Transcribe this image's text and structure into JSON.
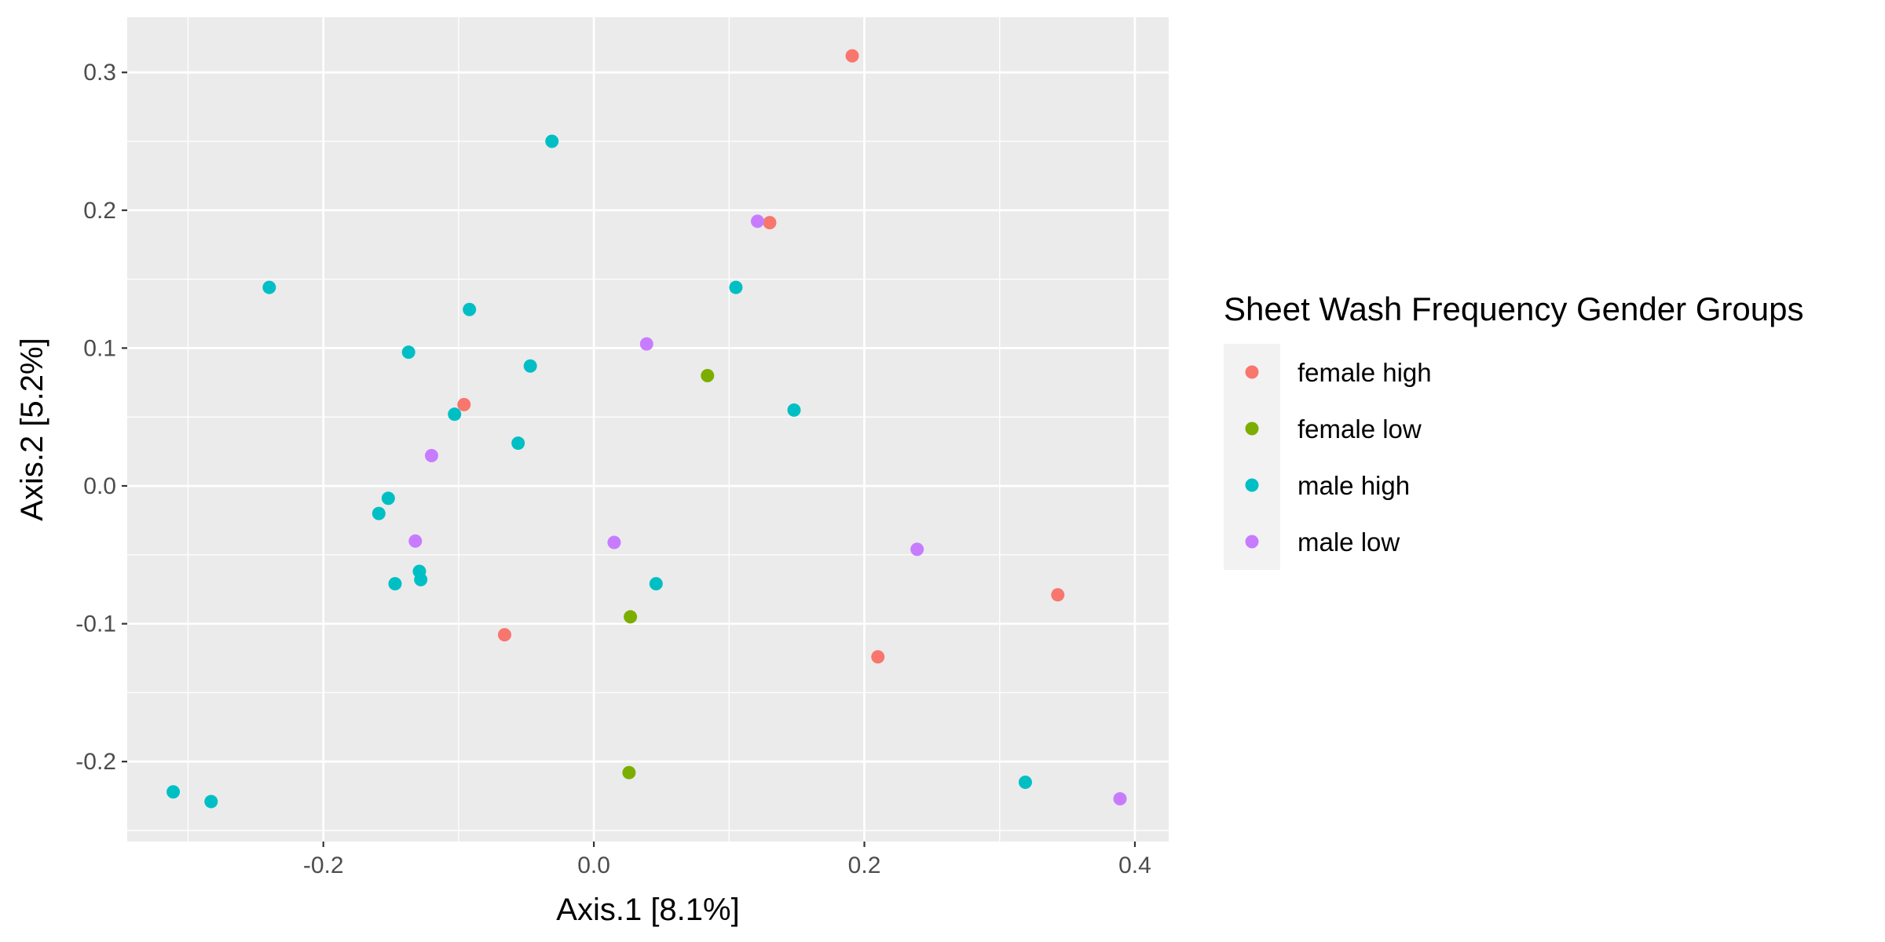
{
  "chart_data": {
    "type": "scatter",
    "xlabel": "Axis.1   [8.1%]",
    "ylabel": "Axis.2   [5.2%]",
    "xlim": [
      -0.345,
      0.425
    ],
    "ylim": [
      -0.258,
      0.34
    ],
    "x_ticks": [
      -0.2,
      0.0,
      0.2,
      0.4
    ],
    "x_tick_labels": [
      "-0.2",
      "0.0",
      "0.2",
      "0.4"
    ],
    "y_ticks": [
      -0.2,
      -0.1,
      0.0,
      0.1,
      0.2,
      0.3
    ],
    "y_tick_labels": [
      "-0.2",
      "-0.1",
      "0.0",
      "0.1",
      "0.2",
      "0.3"
    ],
    "grid": true,
    "legend": {
      "title": "Sheet Wash Frequency Gender Groups",
      "placement": "right"
    },
    "series": [
      {
        "name": "female high",
        "color": "#F8766D",
        "points": [
          [
            0.191,
            0.312
          ],
          [
            0.13,
            0.191
          ],
          [
            -0.096,
            0.059
          ],
          [
            -0.066,
            -0.108
          ],
          [
            0.21,
            -0.124
          ],
          [
            0.343,
            -0.079
          ]
        ]
      },
      {
        "name": "female low",
        "color": "#7CAE00",
        "points": [
          [
            0.084,
            0.08
          ],
          [
            0.027,
            -0.095
          ],
          [
            0.026,
            -0.208
          ]
        ]
      },
      {
        "name": "male high",
        "color": "#00BFC4",
        "points": [
          [
            -0.031,
            0.25
          ],
          [
            -0.24,
            0.144
          ],
          [
            -0.092,
            0.128
          ],
          [
            -0.137,
            0.097
          ],
          [
            0.105,
            0.144
          ],
          [
            -0.047,
            0.087
          ],
          [
            -0.103,
            0.052
          ],
          [
            0.148,
            0.055
          ],
          [
            -0.056,
            0.031
          ],
          [
            -0.152,
            -0.009
          ],
          [
            -0.159,
            -0.02
          ],
          [
            -0.129,
            -0.062
          ],
          [
            -0.147,
            -0.071
          ],
          [
            -0.128,
            -0.068
          ],
          [
            0.046,
            -0.071
          ],
          [
            -0.311,
            -0.222
          ],
          [
            -0.283,
            -0.229
          ],
          [
            0.319,
            -0.215
          ]
        ]
      },
      {
        "name": "male low",
        "color": "#C77CFF",
        "points": [
          [
            0.121,
            0.192
          ],
          [
            0.039,
            0.103
          ],
          [
            -0.12,
            0.022
          ],
          [
            -0.132,
            -0.04
          ],
          [
            0.015,
            -0.041
          ],
          [
            0.239,
            -0.046
          ],
          [
            0.389,
            -0.227
          ]
        ]
      }
    ]
  }
}
